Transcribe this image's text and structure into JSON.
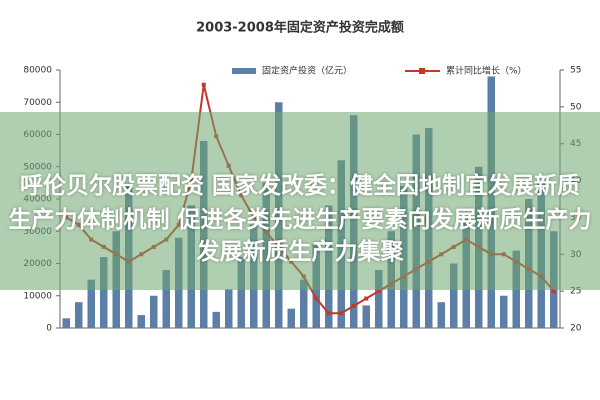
{
  "chart_data": {
    "type": "bar-line",
    "title": "2003-2008年固定资产投资完成额",
    "categories": [
      null,
      null,
      null,
      null,
      null,
      null,
      null,
      null,
      null,
      null,
      null,
      null,
      null,
      null,
      null,
      null,
      null,
      null,
      null,
      null,
      null,
      null,
      null,
      null,
      null,
      null,
      null,
      null,
      null,
      null,
      null,
      null,
      null,
      null,
      null,
      null,
      null,
      null,
      null,
      null
    ],
    "series": [
      {
        "name": "固定资产投资（亿元）",
        "color": "#5b7fa6",
        "type": "bar",
        "values": [
          3000,
          8000,
          15000,
          22000,
          30000,
          45000,
          4000,
          10000,
          18000,
          28000,
          38000,
          58000,
          5000,
          12000,
          22000,
          32000,
          45000,
          70000,
          6000,
          15000,
          26000,
          38000,
          52000,
          66000,
          7000,
          18000,
          30000,
          44000,
          60000,
          62000,
          8000,
          20000,
          34000,
          50000,
          78000,
          10000,
          24000,
          40000,
          45000,
          30000
        ]
      },
      {
        "name": "累计同比增长（%）",
        "color": "#c0392b",
        "type": "line",
        "axis": "y2",
        "values": [
          35,
          34,
          32,
          31,
          30,
          29,
          30,
          31,
          32,
          34,
          40,
          53,
          46,
          42,
          38,
          35,
          33,
          31,
          29,
          27,
          24,
          22,
          22,
          23,
          24,
          25,
          26,
          27,
          28,
          29,
          30,
          31,
          32,
          31,
          30,
          30,
          29,
          28,
          27,
          25
        ]
      }
    ],
    "ylim": [
      0,
      80000
    ],
    "yticks": [
      0,
      10000,
      20000,
      30000,
      40000,
      50000,
      60000,
      70000,
      80000
    ],
    "y2lim": [
      20,
      55
    ],
    "y2ticks": [
      20,
      25,
      30,
      35,
      40,
      45,
      50,
      55
    ],
    "grid": false
  },
  "overlay": {
    "lines": [
      "呼伦贝尔股票配资 国家发改委：健全因地制宜发展新质",
      "生产力体制机制 促进各类先进生产要素向发展新质生产力",
      "发展新质生产力集聚"
    ]
  }
}
